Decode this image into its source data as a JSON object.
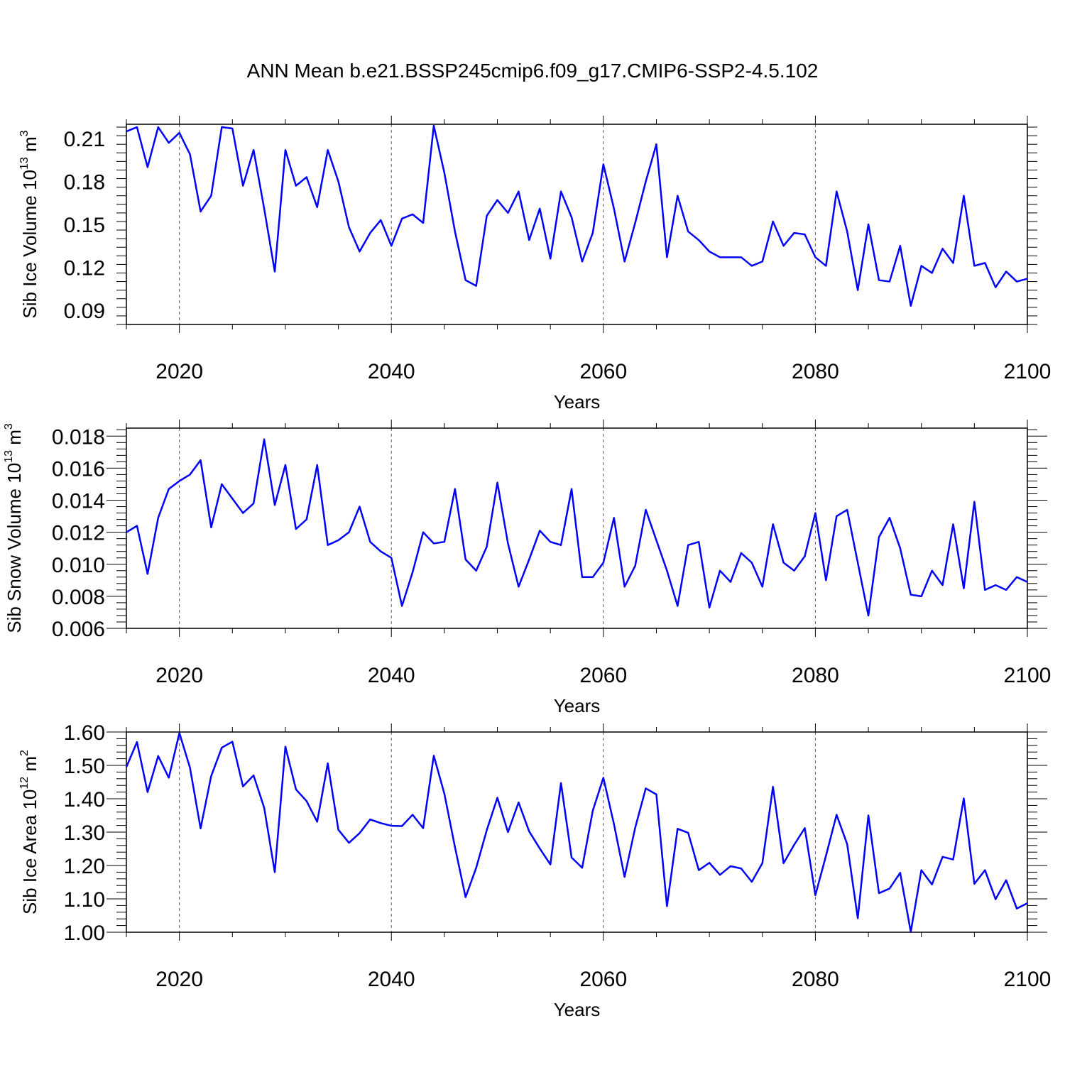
{
  "title": "ANN Mean b.e21.BSSP245cmip6.f09_g17.CMIP6-SSP2-4.5.102",
  "colors": {
    "line": "#0000ff",
    "axis": "#000000",
    "grid": "#555555"
  },
  "chart_data": [
    {
      "type": "line",
      "xlabel": "Years",
      "ylabel": {
        "prefix": "Sib Ice Volume 10",
        "exp": "13",
        "unit": " m",
        "unit_exp": "3"
      },
      "xlim": [
        2015,
        2100
      ],
      "ylim": [
        0.08,
        0.22
      ],
      "xticks": [
        "2020",
        "2040",
        "2060",
        "2080",
        "2100"
      ],
      "yticks": [
        "0.09",
        "0.12",
        "0.15",
        "0.18",
        "0.21"
      ],
      "grid": "dashed vertical at major x ticks",
      "x_start": 2015,
      "values": [
        0.215,
        0.218,
        0.19,
        0.218,
        0.207,
        0.214,
        0.199,
        0.159,
        0.17,
        0.218,
        0.217,
        0.177,
        0.202,
        0.161,
        0.117,
        0.202,
        0.177,
        0.183,
        0.162,
        0.202,
        0.18,
        0.148,
        0.131,
        0.144,
        0.153,
        0.135,
        0.154,
        0.157,
        0.151,
        0.219,
        0.186,
        0.145,
        0.111,
        0.107,
        0.156,
        0.167,
        0.158,
        0.173,
        0.139,
        0.161,
        0.126,
        0.173,
        0.155,
        0.124,
        0.144,
        0.192,
        0.161,
        0.124,
        0.151,
        0.18,
        0.206,
        0.127,
        0.17,
        0.145,
        0.139,
        0.131,
        0.127,
        0.127,
        0.127,
        0.121,
        0.124,
        0.152,
        0.135,
        0.144,
        0.143,
        0.127,
        0.121,
        0.173,
        0.145,
        0.104,
        0.15,
        0.111,
        0.11,
        0.135,
        0.093,
        0.121,
        0.116,
        0.133,
        0.123,
        0.17,
        0.121,
        0.123,
        0.106,
        0.117,
        0.11,
        0.112
      ]
    },
    {
      "type": "line",
      "xlabel": "Years",
      "ylabel": {
        "prefix": "Sib Snow Volume 10",
        "exp": "13",
        "unit": " m",
        "unit_exp": "3"
      },
      "xlim": [
        2015,
        2100
      ],
      "ylim": [
        0.006,
        0.0185
      ],
      "xticks": [
        "2020",
        "2040",
        "2060",
        "2080",
        "2100"
      ],
      "yticks": [
        "0.006",
        "0.008",
        "0.010",
        "0.012",
        "0.014",
        "0.016",
        "0.018"
      ],
      "grid": "dashed vertical at major x ticks",
      "x_start": 2015,
      "values": [
        0.012,
        0.0124,
        0.0094,
        0.0129,
        0.0147,
        0.0152,
        0.0156,
        0.0165,
        0.0123,
        0.015,
        0.0141,
        0.0132,
        0.0138,
        0.0178,
        0.0137,
        0.0162,
        0.0122,
        0.0128,
        0.0162,
        0.0112,
        0.0115,
        0.012,
        0.0136,
        0.0114,
        0.0108,
        0.0104,
        0.0074,
        0.0095,
        0.012,
        0.0113,
        0.0114,
        0.0147,
        0.0103,
        0.0096,
        0.0111,
        0.0151,
        0.0113,
        0.0086,
        0.0103,
        0.0121,
        0.0114,
        0.0112,
        0.0147,
        0.0092,
        0.0092,
        0.0101,
        0.0129,
        0.0086,
        0.0099,
        0.0134,
        0.0115,
        0.0096,
        0.0074,
        0.0112,
        0.0114,
        0.0073,
        0.0096,
        0.0089,
        0.0107,
        0.0101,
        0.0086,
        0.0125,
        0.0101,
        0.0096,
        0.0105,
        0.0132,
        0.009,
        0.013,
        0.0134,
        0.0101,
        0.0068,
        0.0117,
        0.0129,
        0.011,
        0.0081,
        0.008,
        0.0096,
        0.0087,
        0.0125,
        0.0085,
        0.0139,
        0.0084,
        0.0087,
        0.0084,
        0.0092,
        0.0089
      ]
    },
    {
      "type": "line",
      "xlabel": "Years",
      "ylabel": {
        "prefix": "Sib Ice Area 10",
        "exp": "12",
        "unit": " m",
        "unit_exp": "2"
      },
      "xlim": [
        2015,
        2100
      ],
      "ylim": [
        1.0,
        1.6
      ],
      "xticks": [
        "2020",
        "2040",
        "2060",
        "2080",
        "2100"
      ],
      "yticks": [
        "1.00",
        "1.10",
        "1.20",
        "1.30",
        "1.40",
        "1.50",
        "1.60"
      ],
      "grid": "dashed vertical at major x ticks",
      "x_start": 2015,
      "values": [
        1.495,
        1.57,
        1.42,
        1.528,
        1.463,
        1.597,
        1.493,
        1.311,
        1.468,
        1.553,
        1.571,
        1.437,
        1.47,
        1.373,
        1.18,
        1.556,
        1.428,
        1.393,
        1.331,
        1.506,
        1.307,
        1.268,
        1.297,
        1.338,
        1.327,
        1.319,
        1.318,
        1.352,
        1.312,
        1.529,
        1.415,
        1.255,
        1.105,
        1.193,
        1.306,
        1.403,
        1.3,
        1.389,
        1.302,
        1.251,
        1.203,
        1.447,
        1.224,
        1.193,
        1.364,
        1.463,
        1.324,
        1.166,
        1.313,
        1.431,
        1.413,
        1.078,
        1.31,
        1.298,
        1.186,
        1.208,
        1.172,
        1.198,
        1.191,
        1.151,
        1.207,
        1.436,
        1.207,
        1.262,
        1.312,
        1.111,
        1.229,
        1.352,
        1.264,
        1.042,
        1.35,
        1.117,
        1.131,
        1.178,
        1.001,
        1.186,
        1.143,
        1.226,
        1.218,
        1.401,
        1.145,
        1.186,
        1.099,
        1.156,
        1.071,
        1.087
      ]
    }
  ]
}
